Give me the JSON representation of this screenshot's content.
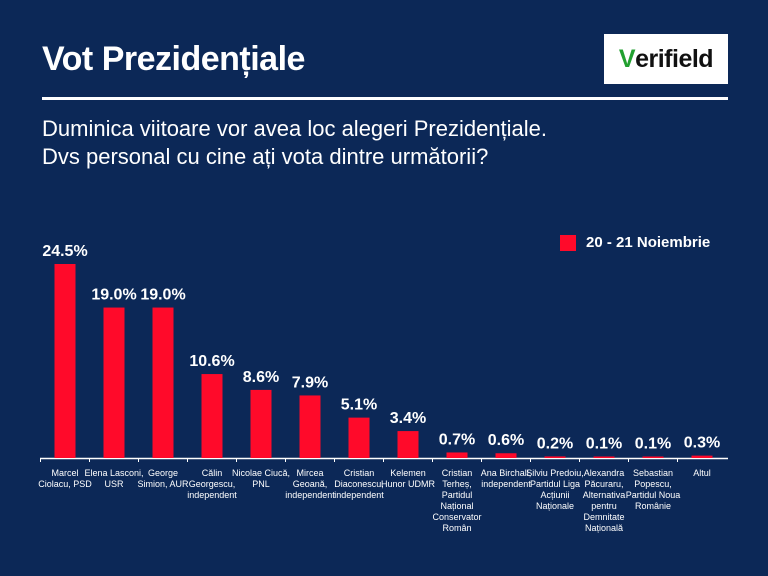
{
  "header": {
    "title": "Vot Prezidențiale",
    "logo_text": "Verifield"
  },
  "question": [
    "Duminica viitoare vor avea loc alegeri Prezidențiale.",
    "Dvs personal cu cine ați vota dintre următorii?"
  ],
  "colors": {
    "bar": "#ff0a2a",
    "background": "#0c2857"
  },
  "chart_data": {
    "type": "bar",
    "title": "Vot Prezidențiale",
    "legend": [
      "20 - 21 Noiembrie"
    ],
    "legend_position": "top-right",
    "categories": [
      "Marcel Ciolacu, PSD",
      "Elena Lasconi, USR",
      "George Simion, AUR",
      "Călin Georgescu, independent",
      "Nicolae Ciucă, PNL",
      "Mircea Geoană, independent",
      "Cristian Diaconescu, independent",
      "Kelemen Hunor UDMR",
      "Cristian Terheș, Partidul Național Conservator Român",
      "Ana Birchall, independent",
      "Silviu Predoiu, Partidul Liga Acțiunii Naționale",
      "Alexandra Păcuraru, Alternativa pentru Demnitate Națională",
      "Sebastian Popescu, Partidul Noua Românie",
      "Altul"
    ],
    "values": [
      24.5,
      19.0,
      19.0,
      10.6,
      8.6,
      7.9,
      5.1,
      3.4,
      0.7,
      0.6,
      0.2,
      0.1,
      0.1,
      0.3
    ],
    "labels": [
      "24.5%",
      "19.0%",
      "19.0%",
      "10.6%",
      "8.6%",
      "7.9%",
      "5.1%",
      "3.4%",
      "0.7%",
      "0.6%",
      "0.2%",
      "0.1%",
      "0.1%",
      "0.3%"
    ],
    "ylim": [
      0,
      25
    ],
    "grid": false
  }
}
